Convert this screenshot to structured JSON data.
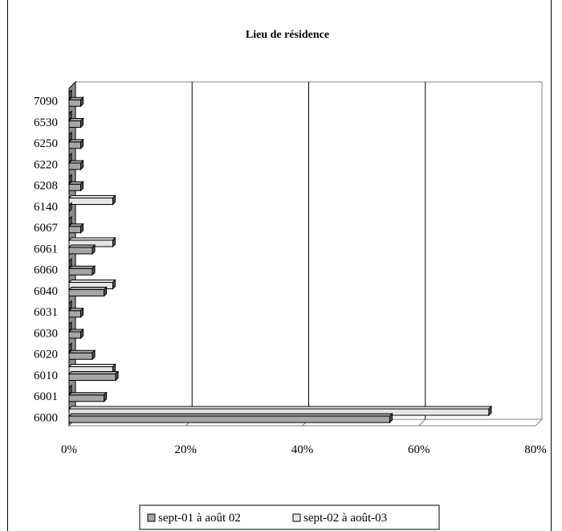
{
  "chart_data": {
    "type": "bar",
    "orientation": "horizontal",
    "title": "Lieu de résidence",
    "categories": [
      "6000",
      "6001",
      "6010",
      "6020",
      "6030",
      "6031",
      "6040",
      "6060",
      "6061",
      "6067",
      "6140",
      "6208",
      "6220",
      "6250",
      "6530",
      "7090"
    ],
    "series": [
      {
        "name": "sept-01 à août 02",
        "color": "#a6a6a6",
        "values": [
          55,
          6,
          8,
          4,
          2,
          2,
          6,
          4,
          4,
          2,
          0,
          2,
          2,
          2,
          2,
          2
        ]
      },
      {
        "name": "sept-02 à août-03",
        "color": "#e6e6e6",
        "values": [
          72,
          0,
          7.5,
          0,
          0,
          0,
          7.5,
          0,
          7.5,
          0,
          7.5,
          0,
          0,
          0,
          0,
          0
        ]
      }
    ],
    "xlim": [
      0,
      80
    ],
    "x_ticks": [
      "0%",
      "20%",
      "40%",
      "60%",
      "80%"
    ],
    "x_tick_values": [
      0,
      20,
      40,
      60,
      80
    ],
    "grid": "vertical gridlines at 20%, 40%, 60%",
    "legend_position": "bottom",
    "style": "3d"
  }
}
